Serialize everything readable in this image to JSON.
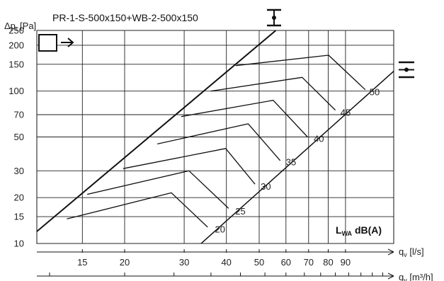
{
  "chart_data": {
    "type": "line",
    "title": "PR-1-S-500x150+WB-2-500x150",
    "ylabel": "Δp_t [Pa]",
    "y_scale": "log",
    "ylim": [
      10,
      250
    ],
    "y_ticks": [
      10,
      15,
      20,
      30,
      50,
      70,
      100,
      150,
      200,
      250
    ],
    "x_scale": "log",
    "xlim_ls": [
      11,
      125
    ],
    "x_ticks_ls": [
      15,
      20,
      30,
      40,
      50,
      60,
      70,
      80,
      90
    ],
    "xlabel_ls": "q_v [l/s]",
    "xlabel_m3h": "q_v [m³/h]",
    "x_ticks_m3h_positions_ls": [
      12,
      20,
      28,
      36,
      44,
      52,
      60,
      68,
      76,
      84,
      92,
      100,
      108,
      116
    ],
    "grid": true,
    "legend_text": "L_WA dB(A)",
    "limit_line": {
      "name": "",
      "points": [
        [
          11,
          12
        ],
        [
          56,
          250
        ]
      ]
    },
    "lower_line": {
      "name": "",
      "points": [
        [
          33,
          9.6
        ],
        [
          125,
          135
        ]
      ]
    },
    "noise_curves": [
      {
        "name": "20",
        "points": [
          [
            13.5,
            14.5
          ],
          [
            27.5,
            21.5
          ],
          [
            35.2,
            12.8
          ]
        ],
        "label_pos": [
          37.0,
          12.3
        ]
      },
      {
        "name": "25",
        "points": [
          [
            15.5,
            21
          ],
          [
            31.0,
            30
          ],
          [
            40.6,
            17
          ]
        ],
        "label_pos": [
          42.5,
          16.2
        ]
      },
      {
        "name": "30",
        "points": [
          [
            19.8,
            31
          ],
          [
            39.8,
            42
          ],
          [
            48.6,
            24.5
          ]
        ],
        "label_pos": [
          50.5,
          23.5
        ]
      },
      {
        "name": "35",
        "points": [
          [
            25.0,
            45
          ],
          [
            46.4,
            61
          ],
          [
            57.7,
            35
          ]
        ],
        "label_pos": [
          60.0,
          34.0
        ]
      },
      {
        "name": "40",
        "points": [
          [
            29.4,
            68
          ],
          [
            55.0,
            87
          ],
          [
            69.5,
            50
          ]
        ],
        "label_pos": [
          72.5,
          48.5
        ]
      },
      {
        "name": "45",
        "points": [
          [
            36.0,
            100
          ],
          [
            67.0,
            123
          ],
          [
            84.0,
            75
          ]
        ],
        "label_pos": [
          87.0,
          72.0
        ]
      },
      {
        "name": "50",
        "points": [
          [
            42.6,
            147
          ],
          [
            80.2,
            172
          ],
          [
            103.0,
            102
          ]
        ],
        "label_pos": [
          106.0,
          98.0
        ]
      }
    ],
    "icons": [
      "square-outlet-arrow-icon",
      "damper-closed-symbol-icon",
      "damper-open-symbol-icon"
    ]
  }
}
